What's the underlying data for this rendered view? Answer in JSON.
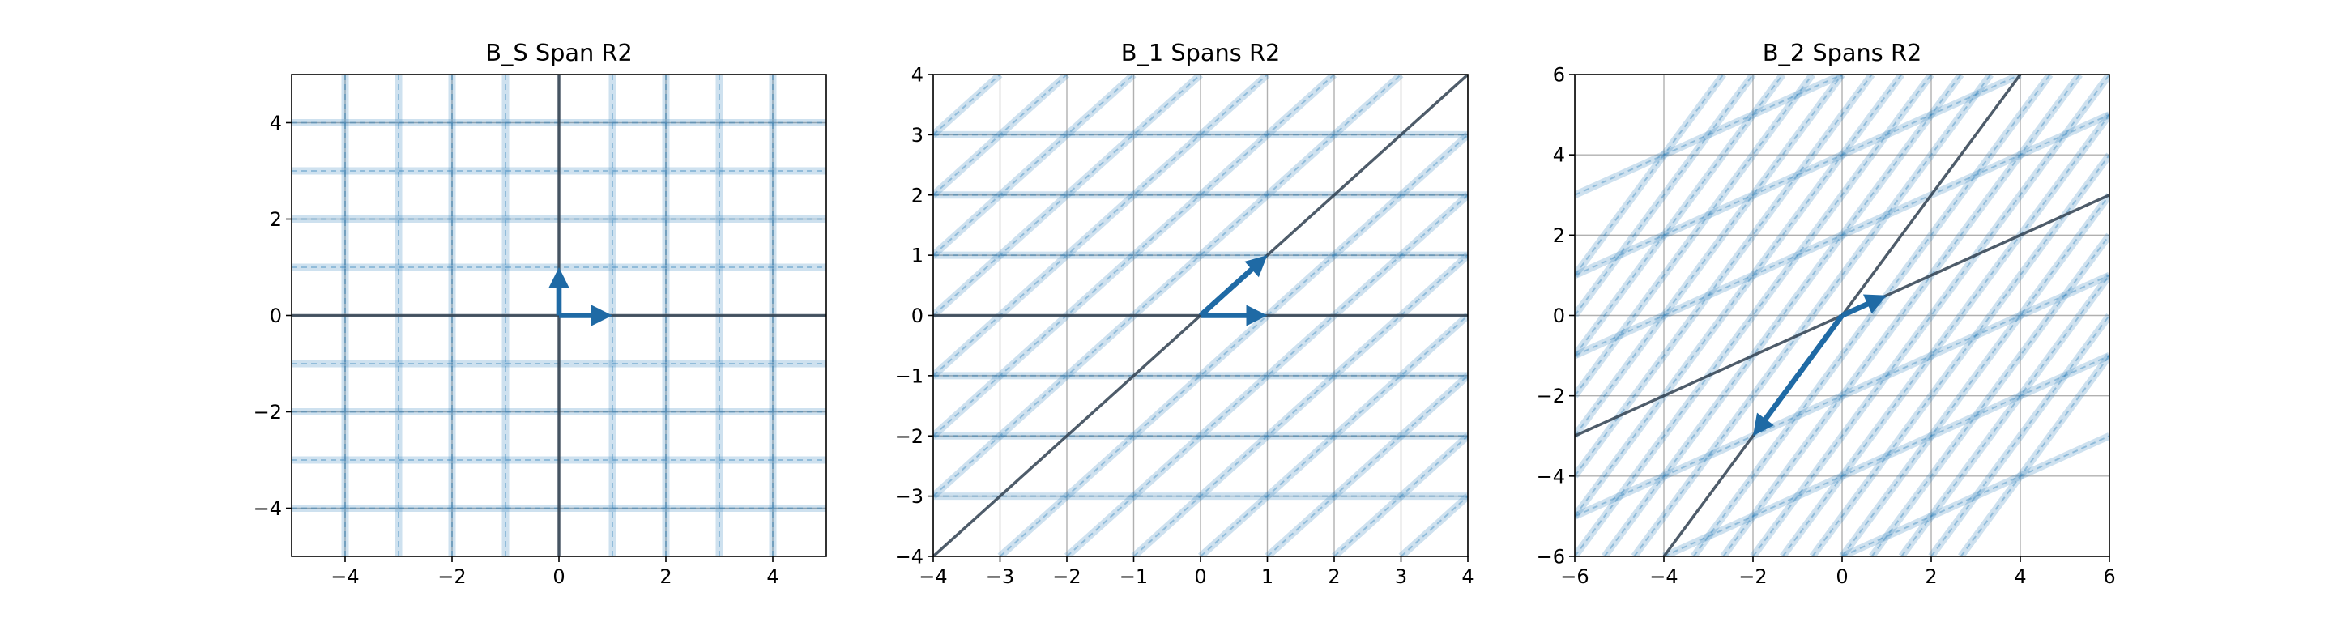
{
  "chart_data": [
    {
      "type": "line",
      "title": "B_S Span R2",
      "xlabel": "",
      "ylabel": "",
      "xlim": [
        -5,
        5
      ],
      "ylim": [
        -5,
        5
      ],
      "xticks": [
        -4,
        -2,
        0,
        2,
        4
      ],
      "yticks": [
        -4,
        -2,
        0,
        2,
        4
      ],
      "xtick_labels": [
        "−4",
        "−2",
        "0",
        "2",
        "4"
      ],
      "ytick_labels": [
        "−4",
        "−2",
        "0",
        "2",
        "4"
      ],
      "grid": true,
      "basis_vectors": [
        [
          1,
          0
        ],
        [
          0,
          1
        ]
      ],
      "span_lines": [
        {
          "direction": [
            1,
            0
          ]
        },
        {
          "direction": [
            0,
            1
          ]
        }
      ],
      "lattice_families": [
        {
          "direction": [
            1,
            0
          ],
          "offset_step": [
            0,
            1
          ],
          "offsets": [
            -4,
            -3,
            -2,
            -1,
            1,
            2,
            3,
            4
          ]
        },
        {
          "direction": [
            0,
            1
          ],
          "offset_step": [
            1,
            0
          ],
          "offsets": [
            -4,
            -3,
            -2,
            -1,
            1,
            2,
            3,
            4
          ]
        }
      ]
    },
    {
      "type": "line",
      "title": "B_1 Spans R2",
      "xlabel": "",
      "ylabel": "",
      "xlim": [
        -4,
        4
      ],
      "ylim": [
        -4,
        4
      ],
      "xticks": [
        -4,
        -3,
        -2,
        -1,
        0,
        1,
        2,
        3,
        4
      ],
      "yticks": [
        -4,
        -3,
        -2,
        -1,
        0,
        1,
        2,
        3,
        4
      ],
      "xtick_labels": [
        "−4",
        "−3",
        "−2",
        "−1",
        "0",
        "1",
        "2",
        "3",
        "4"
      ],
      "ytick_labels": [
        "−4",
        "−3",
        "−2",
        "−1",
        "0",
        "1",
        "2",
        "3",
        "4"
      ],
      "grid": true,
      "basis_vectors": [
        [
          1,
          0
        ],
        [
          1,
          1
        ]
      ],
      "span_lines": [
        {
          "direction": [
            1,
            0
          ]
        },
        {
          "direction": [
            1,
            1
          ]
        }
      ],
      "lattice_families": [
        {
          "direction": [
            1,
            0
          ],
          "offset_step": [
            0,
            1
          ],
          "offsets": [
            -3,
            -2,
            -1,
            1,
            2,
            3
          ]
        },
        {
          "direction": [
            1,
            1
          ],
          "offset_step": [
            1,
            0
          ],
          "offsets": [
            -7,
            -6,
            -5,
            -4,
            -3,
            -2,
            -1,
            1,
            2,
            3,
            4,
            5,
            6,
            7
          ]
        }
      ]
    },
    {
      "type": "line",
      "title": "B_2 Spans R2",
      "xlabel": "",
      "ylabel": "",
      "xlim": [
        -6,
        6
      ],
      "ylim": [
        -6,
        6
      ],
      "xticks": [
        -6,
        -4,
        -2,
        0,
        2,
        4,
        6
      ],
      "yticks": [
        -6,
        -4,
        -2,
        0,
        2,
        4,
        6
      ],
      "xtick_labels": [
        "−6",
        "−4",
        "−2",
        "0",
        "2",
        "4",
        "6"
      ],
      "ytick_labels": [
        "−6",
        "−4",
        "−2",
        "0",
        "2",
        "4",
        "6"
      ],
      "grid": true,
      "basis_vectors": [
        [
          1,
          0.5
        ],
        [
          -2,
          -3
        ]
      ],
      "span_lines": [
        {
          "direction": [
            2,
            1
          ]
        },
        {
          "direction": [
            2,
            3
          ]
        }
      ],
      "lattice_families": [
        {
          "direction": [
            2,
            1
          ],
          "offset_step": [
            2,
            3
          ],
          "offsets": [
            -3,
            -2,
            -1,
            1,
            2,
            3
          ]
        },
        {
          "direction": [
            2,
            3
          ],
          "offset_step": [
            1,
            0.5
          ],
          "offsets": [
            -10,
            -9,
            -8,
            -7,
            -6,
            -5,
            -4,
            -3,
            -2,
            -1,
            1,
            2,
            3,
            4,
            5,
            6,
            7,
            8,
            9,
            10
          ]
        }
      ]
    }
  ],
  "colors": {
    "lattice": "#1f77b4",
    "span_line": "#2f4050",
    "vector": "#1f6aa5",
    "grid": "#b0b0b0",
    "spine": "#000000"
  }
}
